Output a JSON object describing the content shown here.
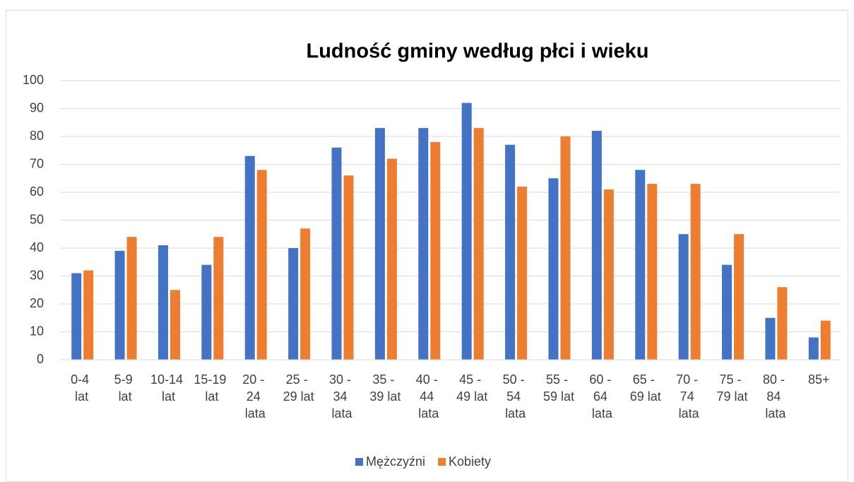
{
  "chart_data": {
    "type": "bar",
    "title": "Ludność gminy według płci i wieku",
    "categories": [
      "0-4 lat",
      "5-9 lat",
      "10-14 lat",
      "15-19 lat",
      "20 - 24 lata",
      "25 - 29 lat",
      "30 - 34 lata",
      "35 - 39 lat",
      "40 - 44 lata",
      "45 - 49 lat",
      "50 - 54 lata",
      "55 - 59 lat",
      "60 - 64 lata",
      "65 - 69 lat",
      "70 - 74 lata",
      "75 - 79 lat",
      "80 - 84 lata",
      "85+"
    ],
    "series": [
      {
        "name": "Mężczyźni",
        "color": "#4472c4",
        "values": [
          31,
          39,
          41,
          34,
          73,
          40,
          76,
          83,
          83,
          92,
          77,
          65,
          82,
          68,
          45,
          34,
          15,
          8
        ]
      },
      {
        "name": "Kobiety",
        "color": "#ed7d31",
        "values": [
          32,
          44,
          25,
          44,
          68,
          47,
          66,
          72,
          78,
          83,
          62,
          80,
          61,
          63,
          63,
          45,
          26,
          14
        ]
      }
    ],
    "ylim": [
      0,
      100
    ],
    "yticks": [
      0,
      10,
      20,
      30,
      40,
      50,
      60,
      70,
      80,
      90,
      100
    ],
    "grid": true,
    "legend": "bottom"
  }
}
